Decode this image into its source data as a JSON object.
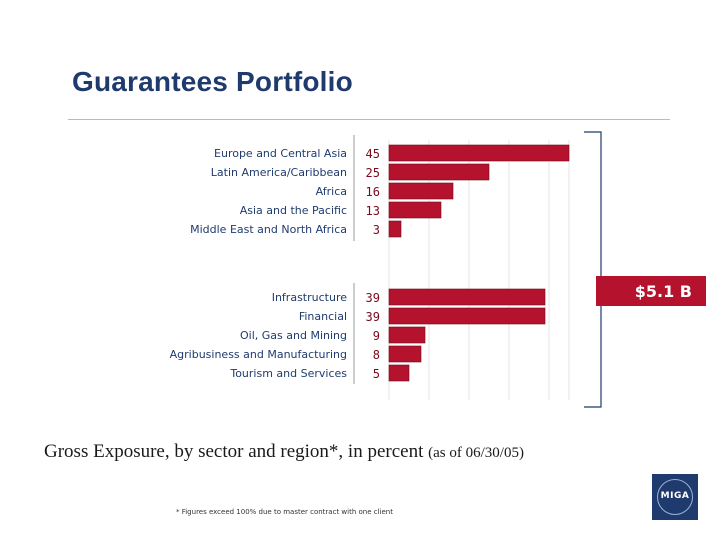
{
  "title": "Guarantees Portfolio",
  "total_label": "$5.1 B",
  "caption_main": "Gross Exposure, by sector and region*, in percent",
  "caption_date": "(as of 06/30/05)",
  "footnote": "* Figures exceed 100% due to master contract with one client",
  "logo_text": "MIGA",
  "colors": {
    "bar": "#b5122d",
    "title": "#1f3b6e",
    "label": "#1f3b6e",
    "value": "#7a0a1c",
    "rule": "#c8c07a"
  },
  "chart_data": [
    {
      "type": "bar",
      "orientation": "horizontal",
      "categories": [
        "Europe and Central Asia",
        "Latin America/Caribbean",
        "Africa",
        "Asia and the Pacific",
        "Middle East and North Africa"
      ],
      "values": [
        45,
        25,
        16,
        13,
        3
      ],
      "grid": true
    },
    {
      "type": "bar",
      "orientation": "horizontal",
      "categories": [
        "Infrastructure",
        "Financial",
        "Oil, Gas and Mining",
        "Agribusiness and Manufacturing",
        "Tourism and Services"
      ],
      "values": [
        39,
        39,
        9,
        8,
        5
      ],
      "grid": true
    }
  ]
}
